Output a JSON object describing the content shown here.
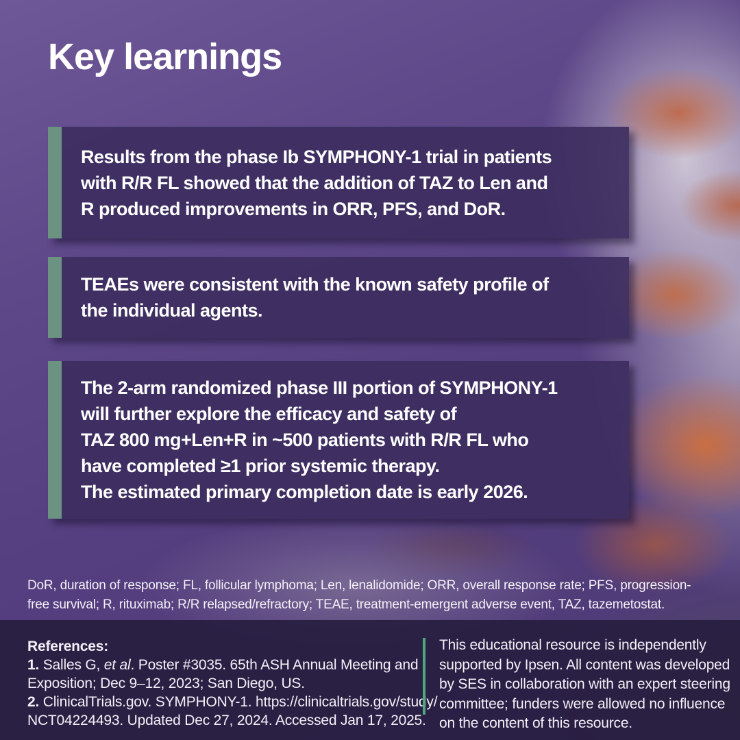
{
  "page": {
    "title": "Key learnings"
  },
  "colors": {
    "accent_bar_green": "#6c9282",
    "divider_green": "#4fa87c",
    "card_fill_purple": "#3c2c5e",
    "background_purple": "#563f80",
    "bottom_panel": "#261d3e",
    "pill_orange": "#cd6e3e"
  },
  "key_points": [
    {
      "lines": [
        "Results from the phase Ib SYMPHONY-1 trial in patients",
        "with R/R FL showed that the addition of TAZ to Len and",
        "R produced improvements in ORR, PFS, and DoR."
      ]
    },
    {
      "lines": [
        "TEAEs were consistent with the known safety profile of",
        "the individual agents."
      ]
    },
    {
      "lines": [
        "The 2-arm randomized phase III portion of SYMPHONY-1",
        "will further explore the efficacy and safety of",
        "TAZ 800 mg+Len+R in ~500 patients with R/R FL who",
        "have completed ≥1 prior systemic therapy.",
        "The estimated primary completion date is early 2026."
      ]
    }
  ],
  "footnote": {
    "lines": [
      "DoR, duration of response; FL, follicular lymphoma; Len, lenalidomide; ORR, overall response rate; PFS, progression-",
      "free survival; R, rituximab; R/R relapsed/refractory; TEAE, treatment-emergent adverse event, TAZ, tazemetostat."
    ]
  },
  "references": {
    "heading": "References:",
    "lines_rich": [
      [
        {
          "t": "1. ",
          "b": true
        },
        {
          "t": "Salles G, "
        },
        {
          "t": "et al",
          "i": true
        },
        {
          "t": ". Poster #3035. 65th ASH Annual Meeting and"
        }
      ],
      [
        {
          "t": "Exposition; Dec 9–12, 2023; San Diego, US."
        }
      ],
      [
        {
          "t": "2. ",
          "b": true
        },
        {
          "t": "ClinicalTrials.gov. SYMPHONY-1. https://clinicaltrials.gov/study/"
        }
      ],
      [
        {
          "t": "NCT04224493. Updated Dec 27, 2024. Accessed Jan 17, 2025."
        }
      ]
    ]
  },
  "support_note": {
    "lines": [
      "This educational resource is independently",
      "supported by Ipsen. All content was developed",
      "by SES in collaboration with an expert steering",
      "committee; funders were allowed no influence",
      "on the content of this resource."
    ]
  }
}
